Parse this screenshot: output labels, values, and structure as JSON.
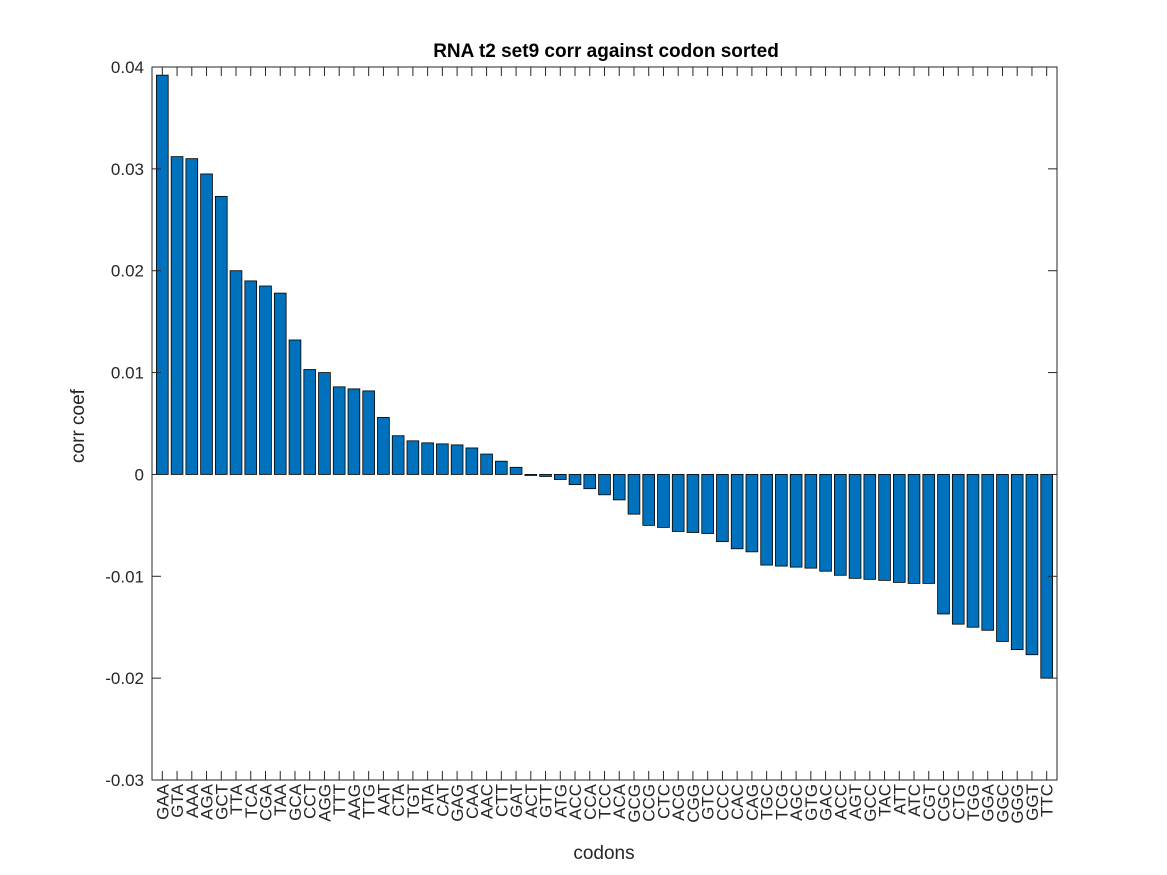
{
  "chart_data": {
    "type": "bar",
    "title": "RNA t2 set9 corr against codon sorted",
    "xlabel": "codons",
    "ylabel": "corr coef",
    "ylim": [
      -0.03,
      0.04
    ],
    "yticks": [
      "-0.03",
      "-0.02",
      "-0.01",
      "0",
      "0.01",
      "0.02",
      "0.03",
      "0.04"
    ],
    "ytick_values": [
      -0.03,
      -0.02,
      -0.01,
      0,
      0.01,
      0.02,
      0.03,
      0.04
    ],
    "grid": false,
    "bar_color": "#0072BD",
    "bar_edge_color": "#000000",
    "categories": [
      "GAA",
      "GTA",
      "AAA",
      "AGA",
      "GCT",
      "TTA",
      "TCA",
      "CGA",
      "TAA",
      "GCA",
      "CCT",
      "AGG",
      "TTT",
      "AAG",
      "TTG",
      "AAT",
      "CTA",
      "TGT",
      "ATA",
      "CAT",
      "GAG",
      "CAA",
      "AAC",
      "CTT",
      "GAT",
      "ACT",
      "GTT",
      "ATG",
      "ACC",
      "CCA",
      "TCC",
      "ACA",
      "GCG",
      "CCG",
      "CTC",
      "ACG",
      "CGG",
      "GTC",
      "CCC",
      "CAC",
      "CAG",
      "TGC",
      "TCG",
      "AGC",
      "GTG",
      "GAC",
      "ACC",
      "AGT",
      "GCC",
      "TAC",
      "ATT",
      "ATC",
      "CGT",
      "CGC",
      "CTG",
      "TGG",
      "GGA",
      "GGC",
      "GGG",
      "GGT",
      "TTC"
    ],
    "values": [
      0.0392,
      0.0312,
      0.031,
      0.0295,
      0.0273,
      0.02,
      0.019,
      0.0185,
      0.0178,
      0.0132,
      0.0103,
      0.01,
      0.0086,
      0.0084,
      0.0082,
      0.0056,
      0.0038,
      0.0033,
      0.0031,
      0.003,
      0.0029,
      0.0026,
      0.002,
      0.0013,
      0.0007,
      -0.0001,
      -0.0002,
      -0.0005,
      -0.001,
      -0.0014,
      -0.002,
      -0.0025,
      -0.0039,
      -0.005,
      -0.0052,
      -0.0056,
      -0.0057,
      -0.0058,
      -0.0066,
      -0.0073,
      -0.0076,
      -0.0089,
      -0.009,
      -0.0091,
      -0.0092,
      -0.0095,
      -0.0099,
      -0.0102,
      -0.0103,
      -0.0104,
      -0.0106,
      -0.0107,
      -0.0107,
      -0.0137,
      -0.0147,
      -0.015,
      -0.0153,
      -0.0164,
      -0.0172,
      -0.0177,
      -0.02
    ]
  }
}
